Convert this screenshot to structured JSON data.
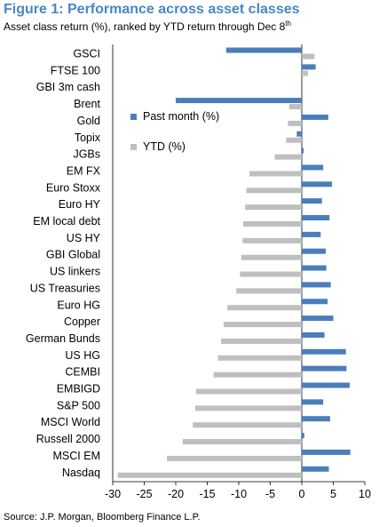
{
  "figure": {
    "title": "Figure 1: Performance across asset classes",
    "subtitle_main": "Asset class return (%), ranked by YTD return through Dec 8",
    "subtitle_sup": "th",
    "source": "Source: J.P. Morgan, Bloomberg Finance L.P."
  },
  "chart_data": {
    "type": "bar",
    "orientation": "horizontal",
    "categories": [
      "GSCI",
      "FTSE 100",
      "GBI 3m cash",
      "Brent",
      "Gold",
      "Topix",
      "JGBs",
      "EM FX",
      "Euro Stoxx",
      "Euro HY",
      "EM local debt",
      "US HY",
      "GBI Global",
      "US linkers",
      "US Treasuries",
      "Euro HG",
      "Copper",
      "German Bunds",
      "US HG",
      "CEMBI",
      "EMBIGD",
      "S&P 500",
      "MSCI World",
      "Russell 2000",
      "MSCI EM",
      "Nasdaq"
    ],
    "series": [
      {
        "name": "Past month (%)",
        "color": "#4a7ebb",
        "values": [
          -12.0,
          2.2,
          0.0,
          -20.0,
          4.2,
          -0.8,
          0.3,
          3.4,
          4.8,
          3.2,
          4.4,
          3.0,
          3.8,
          3.9,
          4.6,
          4.1,
          5.0,
          3.6,
          7.0,
          7.1,
          7.6,
          3.4,
          4.5,
          0.4,
          7.7,
          4.3
        ]
      },
      {
        "name": "YTD (%)",
        "color": "#bfbfbf",
        "values": [
          2.0,
          1.0,
          0.0,
          -2.0,
          -2.2,
          -2.5,
          -4.3,
          -8.3,
          -8.8,
          -9.0,
          -9.3,
          -9.4,
          -9.6,
          -9.8,
          -10.4,
          -11.8,
          -12.4,
          -12.8,
          -13.3,
          -14.0,
          -16.8,
          -16.9,
          -17.3,
          -18.9,
          -21.4,
          -29.2
        ]
      }
    ],
    "xlim": [
      -30,
      10
    ],
    "xticks": [
      "-30",
      "-25",
      "-20",
      "-15",
      "-10",
      "-5",
      "0",
      "5",
      "10"
    ],
    "legend_placement": "left-middle"
  }
}
